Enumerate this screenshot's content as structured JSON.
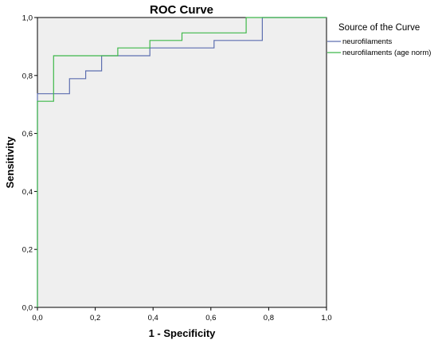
{
  "chart_data": {
    "type": "line",
    "title": "ROC Curve",
    "xlabel": "1 - Specificity",
    "ylabel": "Sensitivity",
    "xlim": [
      0,
      1
    ],
    "ylim": [
      0,
      1
    ],
    "x_ticks": [
      "0,0",
      "0,2",
      "0,4",
      "0,6",
      "0,8",
      "1,0"
    ],
    "y_ticks": [
      "0,0",
      "0,2",
      "0,4",
      "0,6",
      "0,8",
      "1,0"
    ],
    "grid": false,
    "legend_title": "Source of the Curve",
    "legend_position": "top-right outside",
    "plot_background": "#efefef",
    "series": [
      {
        "name": "neurofilaments",
        "color": "#5d6fb0",
        "points": [
          [
            0,
            0
          ],
          [
            0,
            0.737
          ],
          [
            0.111,
            0.737
          ],
          [
            0.111,
            0.789
          ],
          [
            0.167,
            0.789
          ],
          [
            0.167,
            0.816
          ],
          [
            0.222,
            0.816
          ],
          [
            0.222,
            0.868
          ],
          [
            0.389,
            0.868
          ],
          [
            0.389,
            0.895
          ],
          [
            0.611,
            0.895
          ],
          [
            0.611,
            0.921
          ],
          [
            0.778,
            0.921
          ],
          [
            0.778,
            1.0
          ],
          [
            1.0,
            1.0
          ]
        ]
      },
      {
        "name": "neurofilaments (age norm)",
        "color": "#3fb84a",
        "points": [
          [
            0,
            0
          ],
          [
            0,
            0.711
          ],
          [
            0.056,
            0.711
          ],
          [
            0.056,
            0.868
          ],
          [
            0.278,
            0.868
          ],
          [
            0.278,
            0.895
          ],
          [
            0.389,
            0.895
          ],
          [
            0.389,
            0.921
          ],
          [
            0.5,
            0.921
          ],
          [
            0.5,
            0.947
          ],
          [
            0.722,
            0.947
          ],
          [
            0.722,
            1.0
          ],
          [
            1.0,
            1.0
          ]
        ]
      }
    ]
  }
}
